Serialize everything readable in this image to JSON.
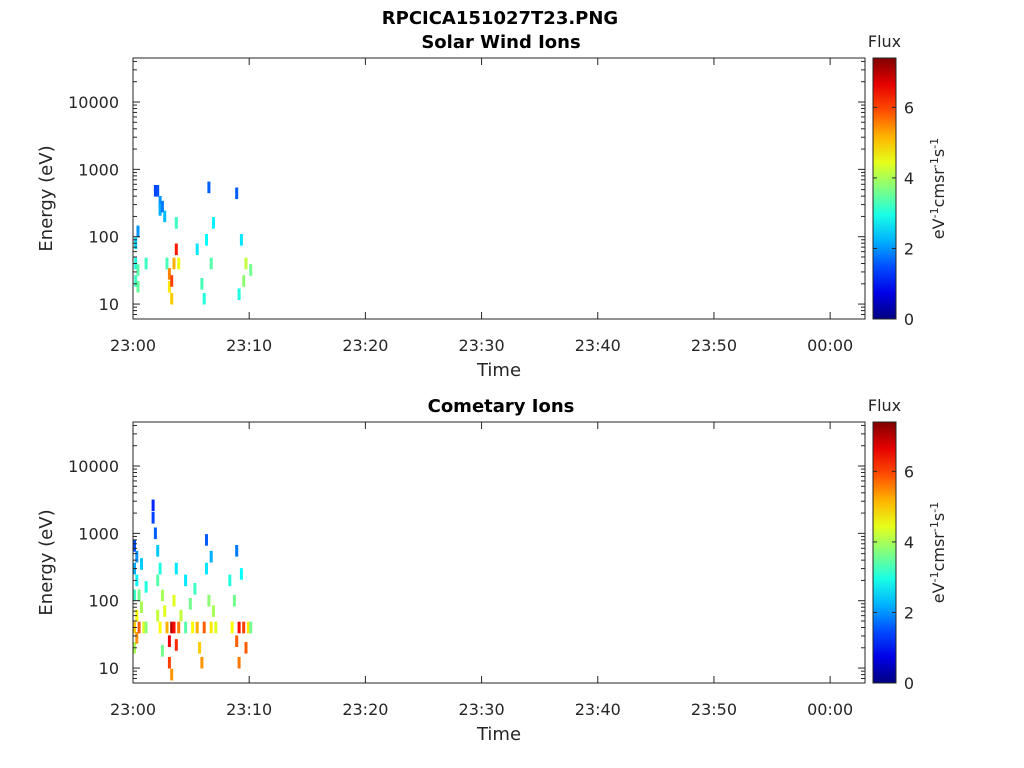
{
  "figure_title": "RPCICA151027T23.PNG",
  "chart_data": [
    {
      "type": "heatmap",
      "title": "Solar Wind Ions",
      "xlabel": "Time",
      "ylabel": "Energy (eV)",
      "y_scale": "log",
      "xlim": [
        "23:00",
        "00:03"
      ],
      "ylim": [
        6,
        45000
      ],
      "x_ticks": [
        "23:00",
        "23:10",
        "23:20",
        "23:30",
        "23:40",
        "23:50",
        "00:00"
      ],
      "y_ticks": [
        "10",
        "100",
        "1000",
        "10000"
      ],
      "colorbar": {
        "title": "Flux",
        "label": "eV-1cm-2sr-1s-1",
        "range": [
          0,
          7.4
        ],
        "ticks": [
          "0",
          "2",
          "4",
          "6"
        ],
        "colormap": "jet"
      },
      "cells": [
        {
          "t": 0.1,
          "e": 80,
          "v": 2.5
        },
        {
          "t": 0.1,
          "e": 40,
          "v": 3.0
        },
        {
          "t": 0.1,
          "e": 22,
          "v": 3.2
        },
        {
          "t": 0.3,
          "e": 120,
          "v": 2.0
        },
        {
          "t": 0.3,
          "e": 32,
          "v": 3.4
        },
        {
          "t": 0.3,
          "e": 18,
          "v": 3.5
        },
        {
          "t": 1.0,
          "e": 40,
          "v": 3.2
        },
        {
          "t": 1.8,
          "e": 480,
          "v": 1.4
        },
        {
          "t": 2.0,
          "e": 480,
          "v": 1.5
        },
        {
          "t": 2.2,
          "e": 330,
          "v": 2.0
        },
        {
          "t": 2.2,
          "e": 250,
          "v": 2.2
        },
        {
          "t": 2.4,
          "e": 280,
          "v": 1.8
        },
        {
          "t": 2.6,
          "e": 200,
          "v": 2.3
        },
        {
          "t": 2.8,
          "e": 40,
          "v": 3.3
        },
        {
          "t": 3.0,
          "e": 28,
          "v": 5.5
        },
        {
          "t": 3.0,
          "e": 18,
          "v": 4.8
        },
        {
          "t": 3.2,
          "e": 12,
          "v": 5.0
        },
        {
          "t": 3.2,
          "e": 22,
          "v": 6.0
        },
        {
          "t": 3.4,
          "e": 40,
          "v": 5.2
        },
        {
          "t": 3.6,
          "e": 65,
          "v": 6.3
        },
        {
          "t": 3.6,
          "e": 160,
          "v": 3.2
        },
        {
          "t": 3.8,
          "e": 40,
          "v": 4.5
        },
        {
          "t": 5.4,
          "e": 65,
          "v": 2.6
        },
        {
          "t": 5.8,
          "e": 20,
          "v": 3.3
        },
        {
          "t": 6.0,
          "e": 12,
          "v": 3.0
        },
        {
          "t": 6.2,
          "e": 90,
          "v": 2.8
        },
        {
          "t": 6.4,
          "e": 540,
          "v": 1.6
        },
        {
          "t": 6.6,
          "e": 40,
          "v": 3.4
        },
        {
          "t": 6.8,
          "e": 160,
          "v": 2.7
        },
        {
          "t": 8.8,
          "e": 440,
          "v": 1.6
        },
        {
          "t": 9.0,
          "e": 14,
          "v": 3.0
        },
        {
          "t": 9.2,
          "e": 90,
          "v": 2.6
        },
        {
          "t": 9.4,
          "e": 22,
          "v": 3.8
        },
        {
          "t": 9.6,
          "e": 40,
          "v": 4.2
        },
        {
          "t": 10.0,
          "e": 32,
          "v": 3.6
        }
      ]
    },
    {
      "type": "heatmap",
      "title": "Cometary Ions",
      "xlabel": "Time",
      "ylabel": "Energy (eV)",
      "y_scale": "log",
      "xlim": [
        "23:00",
        "00:03"
      ],
      "ylim": [
        6,
        45000
      ],
      "x_ticks": [
        "23:00",
        "23:10",
        "23:20",
        "23:30",
        "23:40",
        "23:50",
        "00:00"
      ],
      "y_ticks": [
        "10",
        "100",
        "1000",
        "10000"
      ],
      "colorbar": {
        "title": "Flux",
        "label": "eV-1cm-2sr-1s-1",
        "range": [
          0,
          7.4
        ],
        "ticks": [
          "0",
          "2",
          "4",
          "6"
        ],
        "colormap": "jet"
      },
      "cells": [
        {
          "t": 0.0,
          "e": 650,
          "v": 1.5
        },
        {
          "t": 0.0,
          "e": 300,
          "v": 2.2
        },
        {
          "t": 0.0,
          "e": 120,
          "v": 3.2
        },
        {
          "t": 0.0,
          "e": 40,
          "v": 5.0
        },
        {
          "t": 0.0,
          "e": 20,
          "v": 4.0
        },
        {
          "t": 0.2,
          "e": 450,
          "v": 2.0
        },
        {
          "t": 0.2,
          "e": 200,
          "v": 2.8
        },
        {
          "t": 0.2,
          "e": 60,
          "v": 4.6
        },
        {
          "t": 0.2,
          "e": 28,
          "v": 5.4
        },
        {
          "t": 0.4,
          "e": 120,
          "v": 3.6
        },
        {
          "t": 0.4,
          "e": 40,
          "v": 5.8
        },
        {
          "t": 0.6,
          "e": 350,
          "v": 2.4
        },
        {
          "t": 0.6,
          "e": 80,
          "v": 4.0
        },
        {
          "t": 0.8,
          "e": 40,
          "v": 4.4
        },
        {
          "t": 1.0,
          "e": 160,
          "v": 3.0
        },
        {
          "t": 1.0,
          "e": 40,
          "v": 3.8
        },
        {
          "t": 1.6,
          "e": 2600,
          "v": 1.2
        },
        {
          "t": 1.6,
          "e": 1700,
          "v": 1.4
        },
        {
          "t": 1.8,
          "e": 1000,
          "v": 1.6
        },
        {
          "t": 2.0,
          "e": 550,
          "v": 2.4
        },
        {
          "t": 2.0,
          "e": 200,
          "v": 3.4
        },
        {
          "t": 2.0,
          "e": 60,
          "v": 4.2
        },
        {
          "t": 2.2,
          "e": 300,
          "v": 3.0
        },
        {
          "t": 2.2,
          "e": 40,
          "v": 4.6
        },
        {
          "t": 2.4,
          "e": 120,
          "v": 4.0
        },
        {
          "t": 2.4,
          "e": 18,
          "v": 3.6
        },
        {
          "t": 2.6,
          "e": 70,
          "v": 4.4
        },
        {
          "t": 2.8,
          "e": 40,
          "v": 5.2
        },
        {
          "t": 3.0,
          "e": 25,
          "v": 6.6
        },
        {
          "t": 3.0,
          "e": 12,
          "v": 6.0
        },
        {
          "t": 3.2,
          "e": 40,
          "v": 7.0
        },
        {
          "t": 3.2,
          "e": 8,
          "v": 5.4
        },
        {
          "t": 3.4,
          "e": 100,
          "v": 4.4
        },
        {
          "t": 3.4,
          "e": 40,
          "v": 6.4
        },
        {
          "t": 3.6,
          "e": 300,
          "v": 2.6
        },
        {
          "t": 3.6,
          "e": 22,
          "v": 6.2
        },
        {
          "t": 3.8,
          "e": 40,
          "v": 5.6
        },
        {
          "t": 4.0,
          "e": 60,
          "v": 4.2
        },
        {
          "t": 4.4,
          "e": 200,
          "v": 2.6
        },
        {
          "t": 4.4,
          "e": 40,
          "v": 3.4
        },
        {
          "t": 4.8,
          "e": 90,
          "v": 3.6
        },
        {
          "t": 5.0,
          "e": 40,
          "v": 4.6
        },
        {
          "t": 5.2,
          "e": 150,
          "v": 3.2
        },
        {
          "t": 5.4,
          "e": 40,
          "v": 5.2
        },
        {
          "t": 5.6,
          "e": 20,
          "v": 5.0
        },
        {
          "t": 5.8,
          "e": 12,
          "v": 5.4
        },
        {
          "t": 6.0,
          "e": 40,
          "v": 5.8
        },
        {
          "t": 6.2,
          "e": 800,
          "v": 1.6
        },
        {
          "t": 6.2,
          "e": 300,
          "v": 2.6
        },
        {
          "t": 6.4,
          "e": 100,
          "v": 3.8
        },
        {
          "t": 6.6,
          "e": 450,
          "v": 2.2
        },
        {
          "t": 6.6,
          "e": 40,
          "v": 4.8
        },
        {
          "t": 6.8,
          "e": 70,
          "v": 4.0
        },
        {
          "t": 7.0,
          "e": 40,
          "v": 4.4
        },
        {
          "t": 8.2,
          "e": 200,
          "v": 3.0
        },
        {
          "t": 8.4,
          "e": 40,
          "v": 4.6
        },
        {
          "t": 8.6,
          "e": 100,
          "v": 3.6
        },
        {
          "t": 8.8,
          "e": 550,
          "v": 1.8
        },
        {
          "t": 8.8,
          "e": 25,
          "v": 5.8
        },
        {
          "t": 9.0,
          "e": 40,
          "v": 6.4
        },
        {
          "t": 9.0,
          "e": 12,
          "v": 5.6
        },
        {
          "t": 9.2,
          "e": 250,
          "v": 2.8
        },
        {
          "t": 9.4,
          "e": 40,
          "v": 6.0
        },
        {
          "t": 9.6,
          "e": 20,
          "v": 5.8
        },
        {
          "t": 9.8,
          "e": 40,
          "v": 4.8
        },
        {
          "t": 10.0,
          "e": 40,
          "v": 3.6
        }
      ]
    }
  ]
}
